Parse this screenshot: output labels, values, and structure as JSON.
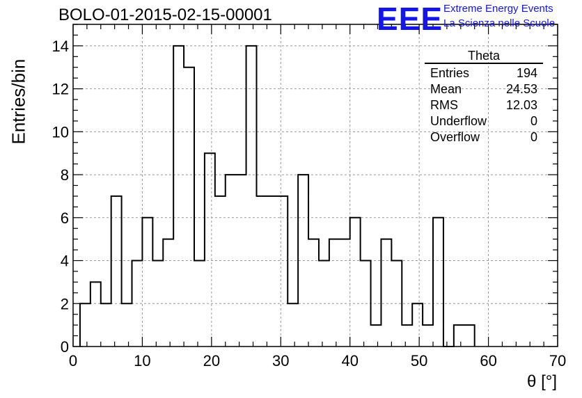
{
  "chart_data": {
    "type": "histogram",
    "title": "BOLO-01-2015-02-15-00001",
    "xlabel": "θ [°]",
    "ylabel": "Entries/bin",
    "xlim": [
      0,
      70
    ],
    "ylim": [
      0,
      15
    ],
    "grid": true,
    "bin_width": 1.5,
    "x_start": 1.0,
    "values": [
      2,
      3,
      2,
      7,
      2,
      4,
      6,
      4,
      5,
      14,
      13,
      4,
      9,
      7,
      8,
      8,
      14,
      7,
      7,
      7,
      2,
      8,
      5,
      4,
      5,
      5,
      6,
      4,
      1,
      5,
      4,
      1,
      2,
      1,
      6,
      0,
      1,
      1
    ],
    "x_ticks": [
      "0",
      "10",
      "20",
      "30",
      "40",
      "50",
      "60",
      "70"
    ],
    "y_ticks": [
      "0",
      "2",
      "4",
      "6",
      "8",
      "10",
      "12",
      "14"
    ],
    "stats": {
      "title": "Theta",
      "rows": [
        {
          "label": "Entries",
          "value": "194"
        },
        {
          "label": "Mean",
          "value": "24.53"
        },
        {
          "label": "RMS",
          "value": "12.03"
        },
        {
          "label": "Underflow",
          "value": "0"
        },
        {
          "label": "Overflow",
          "value": "0"
        }
      ]
    }
  },
  "logo": {
    "mark": "EEE",
    "line1": "Extreme Energy Events",
    "line2": "La Scienza nelle Scuole",
    "color": "#1515e6"
  }
}
